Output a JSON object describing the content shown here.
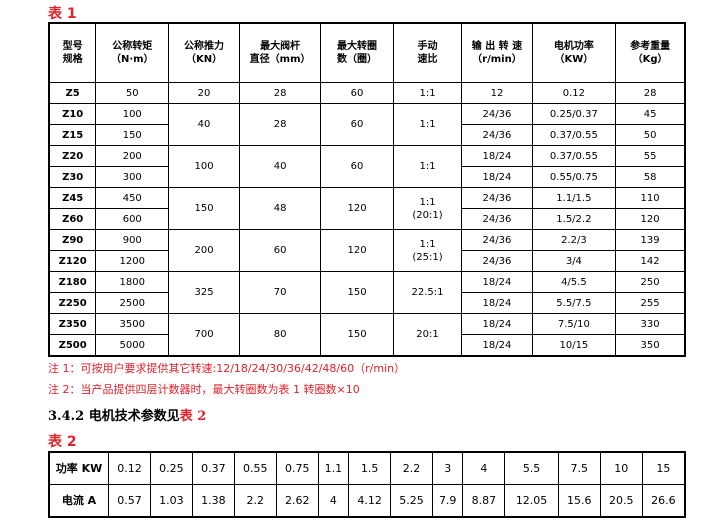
{
  "table1": {
    "caption": "表 1",
    "headers": [
      "型号\n规格",
      "公称转矩\n（N·m）",
      "公称推力\n（KN）",
      "最大阀杆\n直径（mm）",
      "最大转圈\n数（圈）",
      "手动\n速比",
      "输 出 转 速\n（r/min）",
      "电机功率\n（KW）",
      "参考重量\n（Kg）"
    ],
    "rows": [
      [
        "Z5",
        "50",
        "20",
        "28",
        "60",
        "1:1",
        "12",
        "0.12",
        "28"
      ],
      [
        "Z10",
        "100",
        "40",
        "28",
        "60",
        "1:1",
        "24/36",
        "0.25/0.37",
        "45"
      ],
      [
        "Z15",
        "150",
        "",
        "",
        "",
        "",
        "24/36",
        "0.37/0.55",
        "50"
      ],
      [
        "Z20",
        "200",
        "100",
        "40",
        "60",
        "1:1",
        "18/24",
        "0.37/0.55",
        "55"
      ],
      [
        "Z30",
        "300",
        "",
        "",
        "",
        "",
        "18/24",
        "0.55/0.75",
        "58"
      ],
      [
        "Z45",
        "450",
        "150",
        "48",
        "120",
        "1:1\n(20:1)",
        "24/36",
        "1.1/1.5",
        "110"
      ],
      [
        "Z60",
        "600",
        "",
        "",
        "",
        "",
        "24/36",
        "1.5/2.2",
        "120"
      ],
      [
        "Z90",
        "900",
        "200",
        "60",
        "120",
        "1:1\n(25:1)",
        "24/36",
        "2.2/3",
        "139"
      ],
      [
        "Z120",
        "1200",
        "",
        "",
        "",
        "",
        "24/36",
        "3/4",
        "142"
      ],
      [
        "Z180",
        "1800",
        "325",
        "70",
        "150",
        "22.5:1",
        "18/24",
        "4/5.5",
        "250"
      ],
      [
        "Z250",
        "2500",
        "",
        "",
        "",
        "",
        "18/24",
        "5.5/7.5",
        "255"
      ],
      [
        "Z350",
        "3500",
        "700",
        "80",
        "150",
        "20:1",
        "18/24",
        "7.5/10",
        "330"
      ],
      [
        "Z500",
        "5000",
        "",
        "",
        "",
        "",
        "18/24",
        "10/15",
        "350"
      ]
    ]
  },
  "notes": [
    "注 1：可按用户要求提供其它转速:12/18/24/30/36/42/48/60（r/min）",
    "注 2：当产品提供四层计数器时，最大转圈数为表 1 转圈数×10"
  ],
  "section": {
    "text": "3.4.2 电机技术参数见",
    "ref": "表 2"
  },
  "table2": {
    "caption": "表 2",
    "power_label": "功率 KW",
    "power": [
      "0.12",
      "0.25",
      "0.37",
      "0.55",
      "0.75",
      "1.1",
      "1.5",
      "2.2",
      "3",
      "4",
      "5.5",
      "7.5",
      "10",
      "15"
    ],
    "current_label": "电流 A",
    "current": [
      "0.57",
      "1.03",
      "1.38",
      "2.2",
      "2.62",
      "4",
      "4.12",
      "5.25",
      "7.9",
      "8.87",
      "12.05",
      "15.6",
      "20.5",
      "26.6"
    ]
  }
}
